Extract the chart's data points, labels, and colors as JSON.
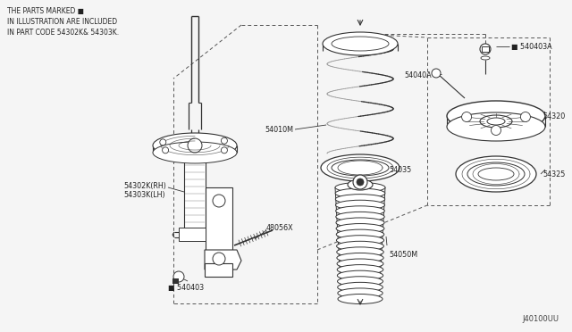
{
  "bg_color": "#f5f5f5",
  "line_color": "#333333",
  "dashed_color": "#555555",
  "fig_width": 6.4,
  "fig_height": 3.72,
  "dpi": 100,
  "note_lines": [
    "THE PARTS MARKED ■",
    "IN ILLUSTRATION ARE INCLUDED",
    "IN PART CODE 54302K& 54303K."
  ],
  "diagram_id": "J40100UU",
  "label_fontsize": 5.8,
  "note_fontsize": 5.5
}
